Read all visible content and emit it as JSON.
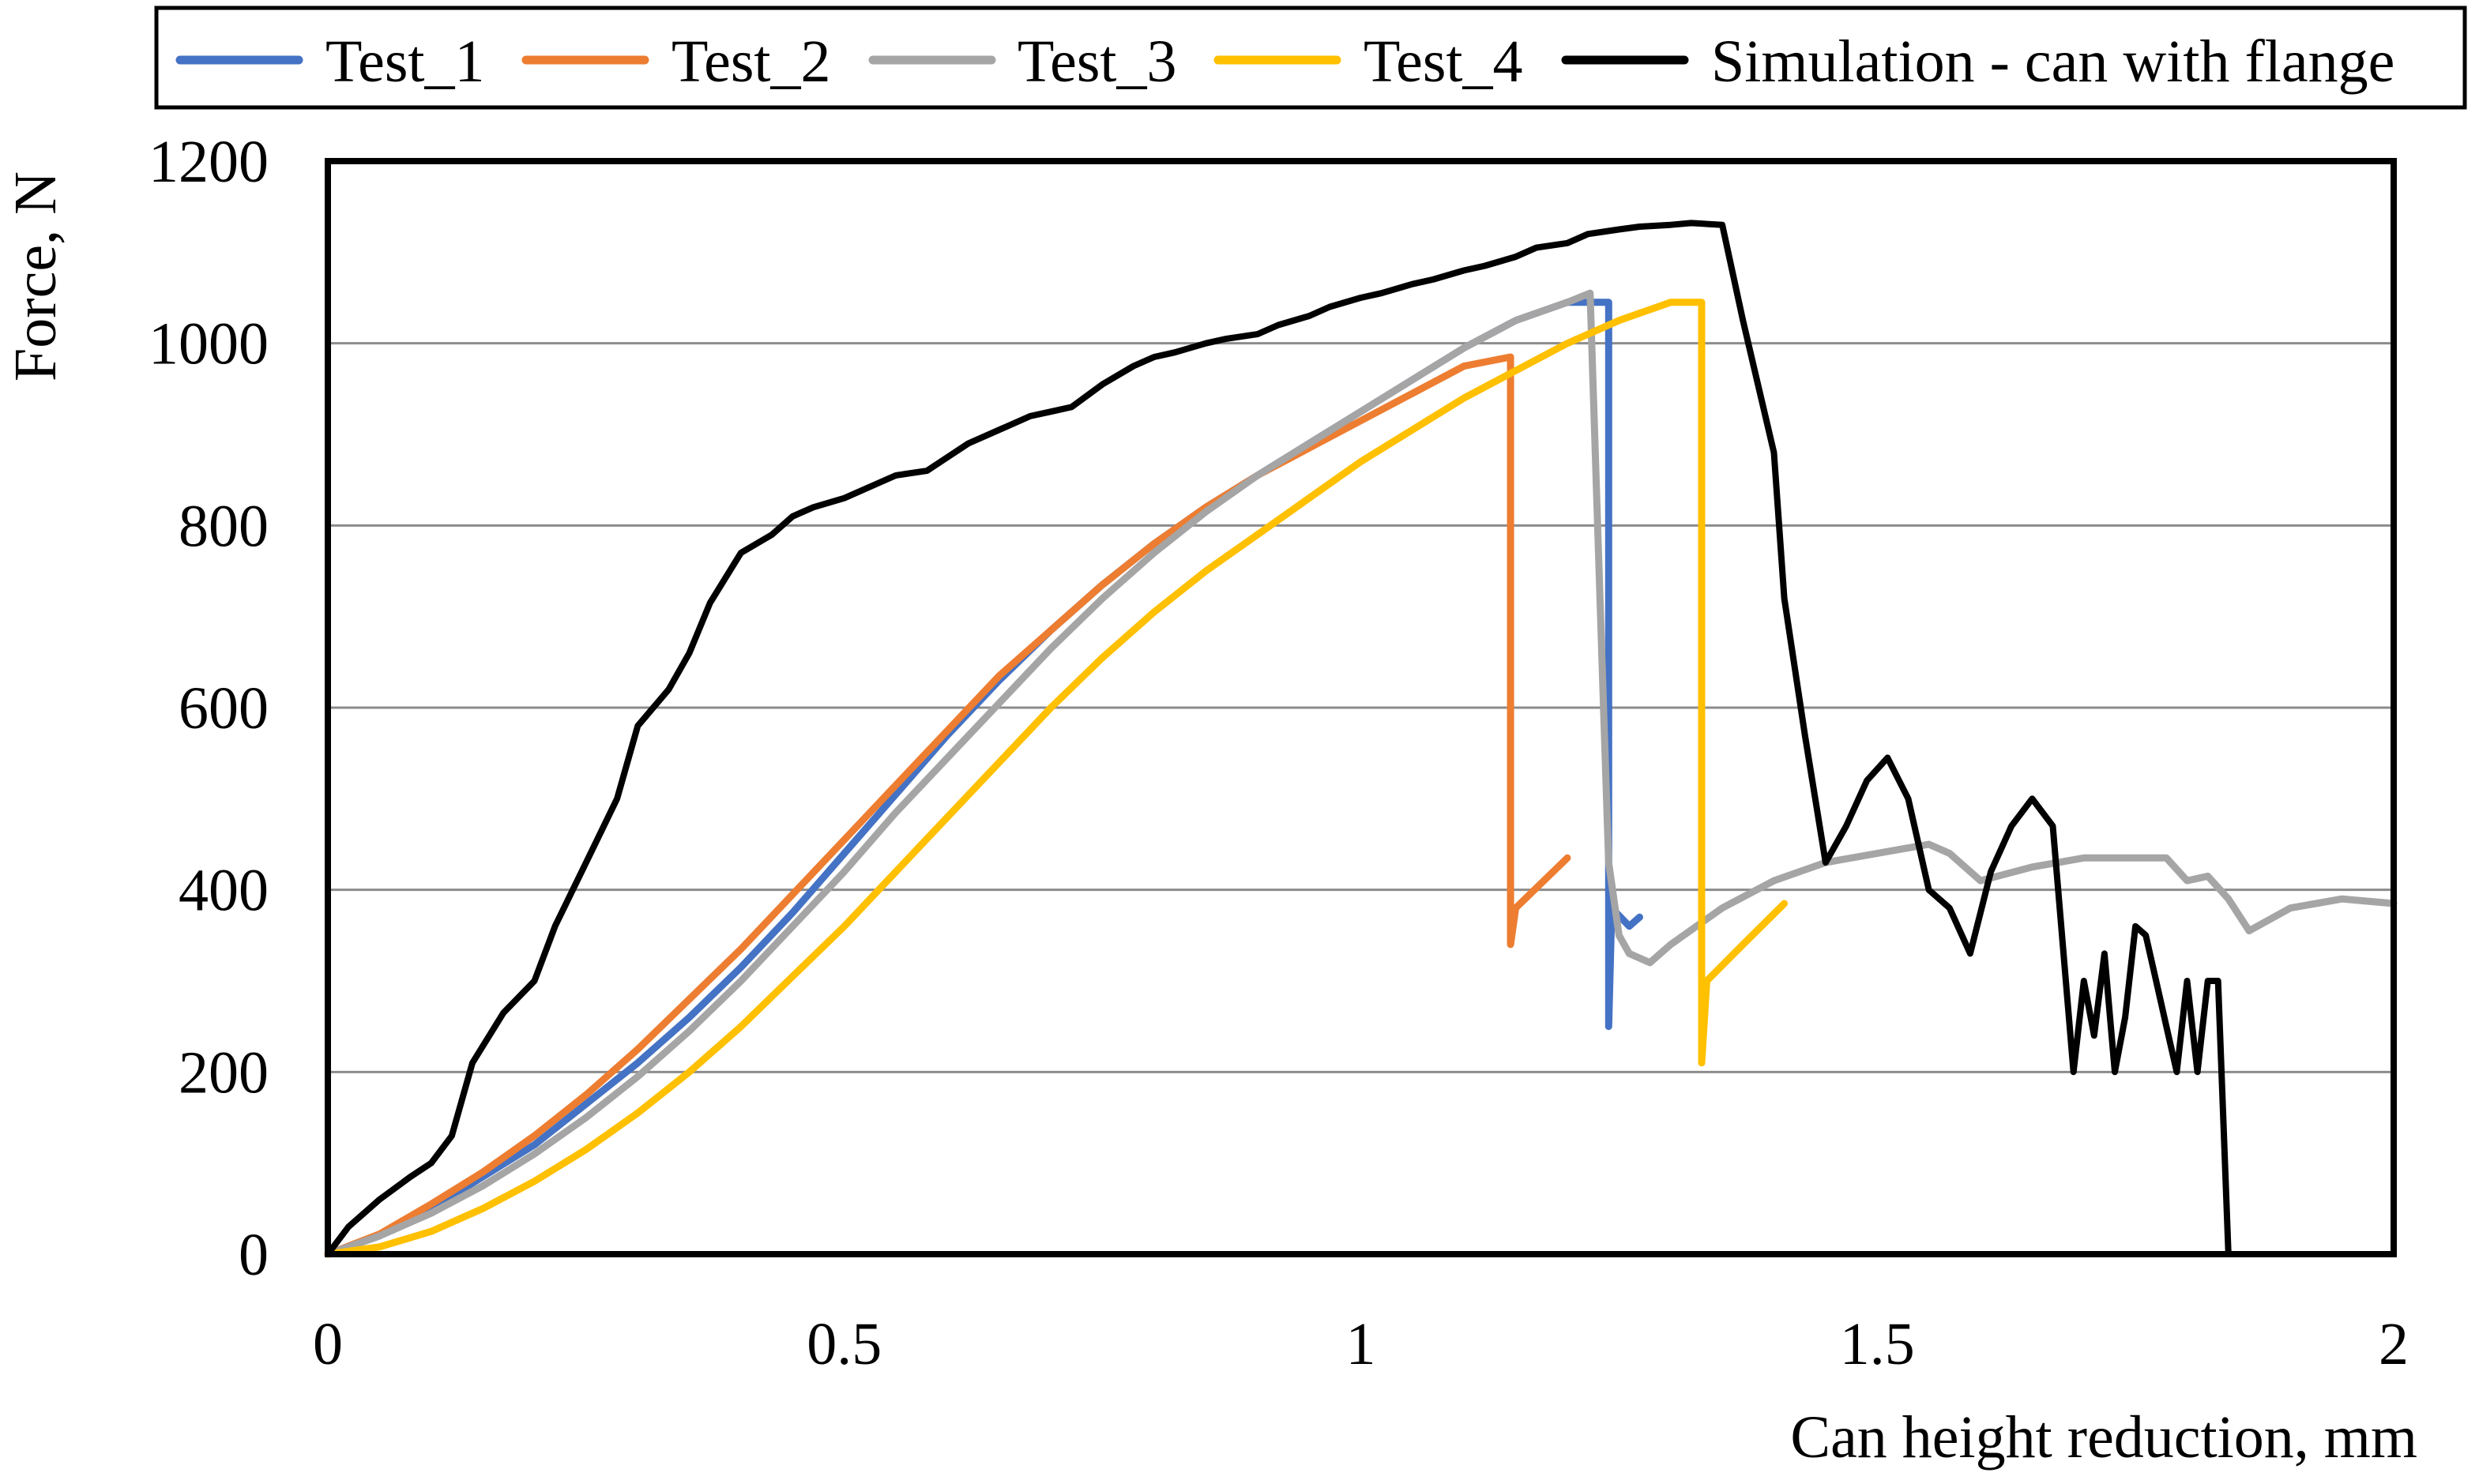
{
  "chart_data": {
    "type": "line",
    "title": "",
    "xlabel": "Can height reduction, mm",
    "ylabel": "Force, N",
    "xlim": [
      0,
      2
    ],
    "ylim": [
      0,
      1200
    ],
    "x_ticks": [
      0,
      0.5,
      1,
      1.5,
      2
    ],
    "x_tick_labels": [
      "0",
      "0.5",
      "1",
      "1.5",
      "2"
    ],
    "y_ticks": [
      0,
      200,
      400,
      600,
      800,
      1000,
      1200
    ],
    "y_tick_labels": [
      "0",
      "200",
      "400",
      "600",
      "800",
      "1000",
      "1200"
    ],
    "grid": "horizontal",
    "legend_position": "top",
    "series": [
      {
        "name": "Test_1",
        "color": "#4472C4",
        "x": [
          0,
          0.05,
          0.1,
          0.15,
          0.2,
          0.25,
          0.3,
          0.35,
          0.4,
          0.45,
          0.5,
          0.55,
          0.6,
          0.65,
          0.7,
          0.75,
          0.8,
          0.85,
          0.9,
          0.95,
          1.0,
          1.05,
          1.1,
          1.15,
          1.2,
          1.24,
          1.24,
          1.243,
          1.26,
          1.27
        ],
        "y": [
          0,
          20,
          50,
          85,
          120,
          165,
          210,
          260,
          315,
          375,
          440,
          505,
          570,
          630,
          685,
          735,
          780,
          820,
          855,
          890,
          925,
          960,
          995,
          1025,
          1045,
          1045,
          250,
          380,
          360,
          370
        ]
      },
      {
        "name": "Test_2",
        "color": "#ED7D31",
        "x": [
          0,
          0.05,
          0.1,
          0.15,
          0.2,
          0.25,
          0.3,
          0.35,
          0.4,
          0.45,
          0.5,
          0.55,
          0.6,
          0.65,
          0.7,
          0.75,
          0.8,
          0.85,
          0.9,
          0.95,
          1.0,
          1.05,
          1.1,
          1.145,
          1.145,
          1.15,
          1.2
        ],
        "y": [
          0,
          22,
          55,
          90,
          130,
          175,
          225,
          280,
          335,
          395,
          455,
          515,
          575,
          635,
          685,
          735,
          780,
          820,
          855,
          885,
          915,
          945,
          975,
          985,
          340,
          380,
          435
        ]
      },
      {
        "name": "Test_3",
        "color": "#A5A5A5",
        "x": [
          0,
          0.05,
          0.1,
          0.15,
          0.2,
          0.25,
          0.3,
          0.35,
          0.4,
          0.45,
          0.5,
          0.55,
          0.6,
          0.65,
          0.7,
          0.75,
          0.8,
          0.85,
          0.9,
          0.95,
          1.0,
          1.05,
          1.1,
          1.15,
          1.2,
          1.222,
          1.235,
          1.24,
          1.25,
          1.26,
          1.28,
          1.3,
          1.35,
          1.4,
          1.45,
          1.5,
          1.55,
          1.57,
          1.6,
          1.65,
          1.7,
          1.75,
          1.78,
          1.8,
          1.82,
          1.84,
          1.86,
          1.9,
          1.95,
          2.0
        ],
        "y": [
          0,
          20,
          45,
          75,
          110,
          150,
          195,
          245,
          300,
          360,
          420,
          485,
          545,
          605,
          665,
          720,
          770,
          815,
          855,
          890,
          925,
          960,
          995,
          1025,
          1045,
          1055,
          600,
          430,
          350,
          330,
          320,
          340,
          380,
          410,
          430,
          440,
          450,
          440,
          410,
          425,
          435,
          435,
          435,
          410,
          415,
          390,
          355,
          380,
          390,
          385
        ]
      },
      {
        "name": "Test_4",
        "color": "#FFC000",
        "x": [
          0,
          0.05,
          0.1,
          0.15,
          0.2,
          0.25,
          0.3,
          0.35,
          0.4,
          0.45,
          0.5,
          0.55,
          0.6,
          0.65,
          0.7,
          0.75,
          0.8,
          0.85,
          0.9,
          0.95,
          1.0,
          1.05,
          1.1,
          1.15,
          1.2,
          1.25,
          1.3,
          1.33,
          1.33,
          1.335,
          1.37,
          1.41
        ],
        "y": [
          0,
          8,
          25,
          50,
          80,
          115,
          155,
          200,
          250,
          305,
          360,
          420,
          480,
          540,
          600,
          655,
          705,
          750,
          790,
          830,
          870,
          905,
          940,
          970,
          1000,
          1025,
          1045,
          1045,
          210,
          300,
          340,
          385
        ]
      },
      {
        "name": "Simulation - can with flange",
        "color": "#000000",
        "x": [
          0,
          0.02,
          0.05,
          0.08,
          0.1,
          0.12,
          0.14,
          0.17,
          0.2,
          0.22,
          0.25,
          0.28,
          0.3,
          0.33,
          0.35,
          0.37,
          0.4,
          0.43,
          0.45,
          0.47,
          0.5,
          0.53,
          0.55,
          0.58,
          0.6,
          0.62,
          0.65,
          0.68,
          0.7,
          0.72,
          0.75,
          0.78,
          0.8,
          0.82,
          0.85,
          0.87,
          0.9,
          0.92,
          0.95,
          0.97,
          1.0,
          1.02,
          1.05,
          1.07,
          1.1,
          1.12,
          1.15,
          1.17,
          1.2,
          1.22,
          1.25,
          1.27,
          1.3,
          1.32,
          1.35,
          1.37,
          1.4,
          1.41,
          1.43,
          1.45,
          1.47,
          1.49,
          1.51,
          1.53,
          1.55,
          1.57,
          1.59,
          1.61,
          1.63,
          1.65,
          1.67,
          1.69,
          1.7,
          1.71,
          1.72,
          1.73,
          1.74,
          1.75,
          1.76,
          1.77,
          1.78,
          1.79,
          1.8,
          1.81,
          1.82,
          1.83,
          1.84,
          1.845,
          1.85,
          1.85
        ],
        "y": [
          0,
          30,
          60,
          85,
          100,
          130,
          210,
          265,
          300,
          360,
          430,
          500,
          580,
          620,
          660,
          715,
          770,
          790,
          810,
          820,
          830,
          845,
          855,
          860,
          875,
          890,
          905,
          920,
          925,
          930,
          955,
          975,
          985,
          990,
          1000,
          1005,
          1010,
          1020,
          1030,
          1040,
          1050,
          1055,
          1065,
          1070,
          1080,
          1085,
          1095,
          1105,
          1110,
          1120,
          1125,
          1128,
          1130,
          1132,
          1130,
          1025,
          880,
          720,
          570,
          430,
          470,
          520,
          545,
          500,
          400,
          380,
          330,
          420,
          470,
          500,
          470,
          200,
          300,
          240,
          330,
          200,
          260,
          360,
          350,
          300,
          250,
          200,
          300,
          200,
          300,
          300,
          0,
          0,
          0,
          0
        ]
      }
    ]
  }
}
